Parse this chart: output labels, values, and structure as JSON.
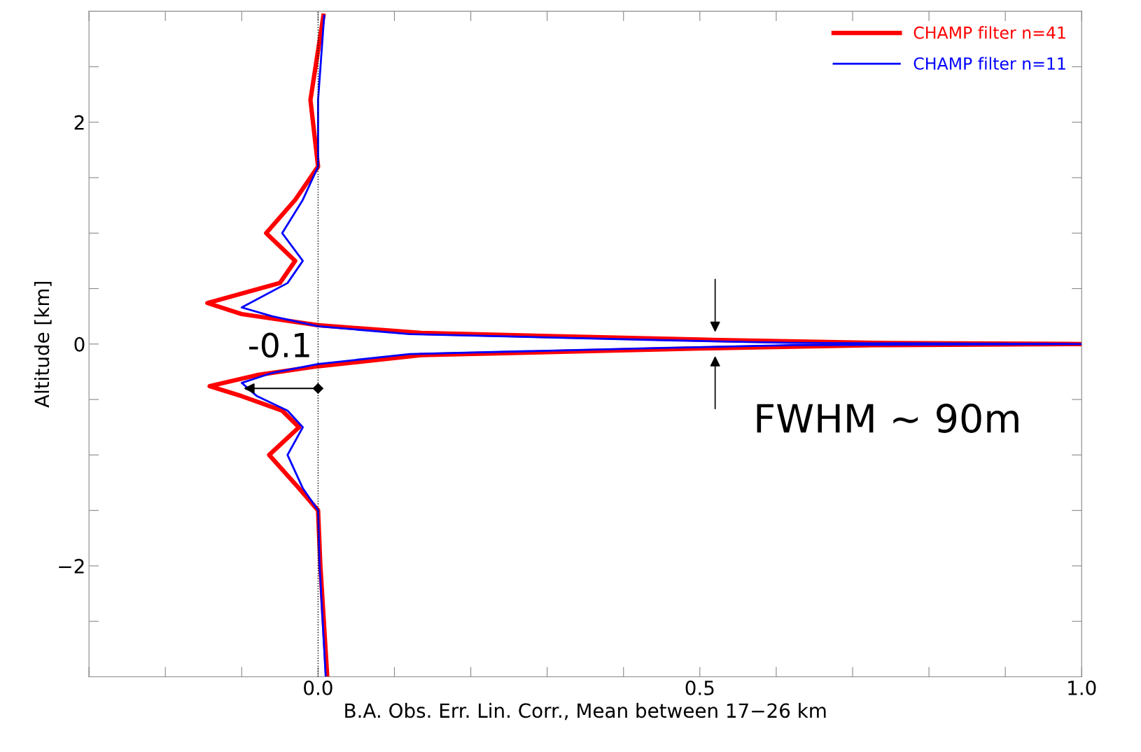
{
  "chart_data": {
    "type": "line",
    "xlabel": "B.A. Obs. Err. Lin. Corr., Mean between 17−26 km",
    "ylabel": "Altitude [km]",
    "xlim": [
      -0.3,
      1.0
    ],
    "ylim": [
      -3,
      3
    ],
    "xticks": [
      {
        "value": -0.3,
        "label": null
      },
      {
        "value": -0.2,
        "label": null
      },
      {
        "value": -0.1,
        "label": null
      },
      {
        "value": 0.0,
        "label": "0.0"
      },
      {
        "value": 0.1,
        "label": null
      },
      {
        "value": 0.2,
        "label": null
      },
      {
        "value": 0.3,
        "label": null
      },
      {
        "value": 0.4,
        "label": null
      },
      {
        "value": 0.5,
        "label": "0.5"
      },
      {
        "value": 0.6,
        "label": null
      },
      {
        "value": 0.7,
        "label": null
      },
      {
        "value": 0.8,
        "label": null
      },
      {
        "value": 0.9,
        "label": null
      },
      {
        "value": 1.0,
        "label": "1.0"
      }
    ],
    "yticks": [
      {
        "value": -2.5,
        "label": null
      },
      {
        "value": -2,
        "label": "−2"
      },
      {
        "value": -1.5,
        "label": null
      },
      {
        "value": -1,
        "label": null
      },
      {
        "value": -0.5,
        "label": null
      },
      {
        "value": 0,
        "label": "0"
      },
      {
        "value": 0.5,
        "label": null
      },
      {
        "value": 1,
        "label": null
      },
      {
        "value": 1.5,
        "label": null
      },
      {
        "value": 2,
        "label": "2"
      },
      {
        "value": 2.5,
        "label": null
      }
    ],
    "grid": false,
    "legend": "top right",
    "marker": "none",
    "line_style": "solid",
    "ref_lines": [
      {
        "axis": "x",
        "value": 0,
        "color": "#000000",
        "line_style": "dotted"
      }
    ],
    "annotations": [
      {
        "text": "-0.1",
        "x": -0.1,
        "y": -0.4
      },
      {
        "text": "FWHM ~ 90m",
        "x": 0.52,
        "y": 0
      }
    ],
    "series": [
      {
        "name": "CHAMP filter n=41",
        "color": "#ff0000",
        "x": [
          0.012,
          0.003,
          0.0,
          -0.025,
          -0.064,
          -0.025,
          -0.047,
          -0.1,
          -0.142,
          -0.08,
          0.0,
          0.135,
          0.5,
          0.73,
          1.0,
          0.73,
          0.5,
          0.135,
          0.0,
          -0.1,
          -0.145,
          -0.05,
          -0.03,
          -0.068,
          -0.03,
          0.0,
          -0.01,
          0.007
        ],
        "values": [
          -3.0,
          -2.0,
          -1.5,
          -1.3,
          -1.0,
          -0.75,
          -0.6,
          -0.47,
          -0.38,
          -0.28,
          -0.2,
          -0.1,
          -0.04,
          -0.01,
          0.0,
          0.01,
          0.04,
          0.1,
          0.17,
          0.27,
          0.37,
          0.55,
          0.75,
          1.0,
          1.3,
          1.6,
          2.2,
          2.96
        ]
      },
      {
        "name": "CHAMP filter n=11",
        "color": "#0000ff",
        "x": [
          0.01,
          0.002,
          0.0,
          -0.02,
          -0.04,
          -0.02,
          -0.04,
          -0.08,
          -0.1,
          -0.06,
          0.0,
          0.12,
          0.45,
          0.62,
          1.0,
          0.62,
          0.45,
          0.12,
          0.0,
          -0.06,
          -0.1,
          -0.04,
          -0.02,
          -0.047,
          -0.02,
          0.0,
          0.0,
          0.008
        ],
        "values": [
          -3.0,
          -2.0,
          -1.5,
          -1.3,
          -1.0,
          -0.75,
          -0.6,
          -0.47,
          -0.35,
          -0.26,
          -0.18,
          -0.09,
          -0.035,
          -0.01,
          0.0,
          0.01,
          0.035,
          0.09,
          0.16,
          0.25,
          0.33,
          0.55,
          0.75,
          1.0,
          1.3,
          1.6,
          2.2,
          2.96
        ]
      }
    ]
  }
}
